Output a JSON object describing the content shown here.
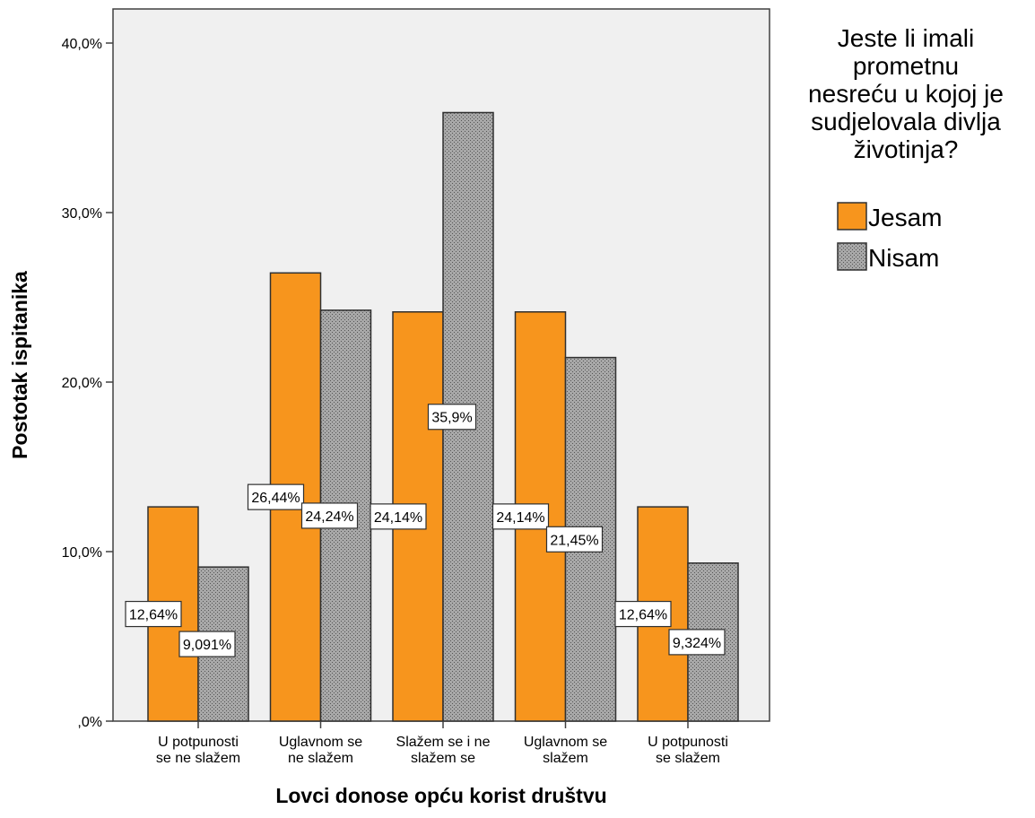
{
  "chart_data": {
    "type": "bar",
    "categories": [
      [
        "U potpunosti",
        "se ne slažem"
      ],
      [
        "Uglavnom se",
        "ne slažem"
      ],
      [
        "Slažem se i ne",
        "slažem se"
      ],
      [
        "Uglavnom se",
        "slažem"
      ],
      [
        "U potpunosti",
        "se slažem"
      ]
    ],
    "series": [
      {
        "name": "Jesam",
        "values": [
          12.64,
          26.44,
          24.14,
          24.14,
          12.64
        ],
        "labels": [
          "12,64%",
          "26,44%",
          "24,14%",
          "24,14%",
          "12,64%"
        ],
        "color": "#f7951d",
        "pattern": "solid"
      },
      {
        "name": "Nisam",
        "values": [
          9.091,
          24.24,
          35.9,
          21.45,
          9.324
        ],
        "labels": [
          "9,091%",
          "24,24%",
          "35,9%",
          "21,45%",
          "9,324%"
        ],
        "color": "#a0a0a0",
        "pattern": "dotted"
      }
    ],
    "xlabel": "Lovci donose opću korist društvu",
    "ylabel": "Postotak ispitanika",
    "ylim": [
      0,
      40
    ],
    "yticks": [
      {
        "value": 0,
        "label": ",0%"
      },
      {
        "value": 10,
        "label": "10,0%"
      },
      {
        "value": 20,
        "label": "20,0%"
      },
      {
        "value": 30,
        "label": "30,0%"
      },
      {
        "value": 40,
        "label": "40,0%"
      }
    ],
    "legend": {
      "title": [
        "Jeste li imali",
        "prometnu",
        "nesreću u kojoj je",
        "sudjelovala divlja",
        "životinja?"
      ],
      "placement": "right"
    },
    "plot_background": "#f0f0f0",
    "grid": false
  }
}
